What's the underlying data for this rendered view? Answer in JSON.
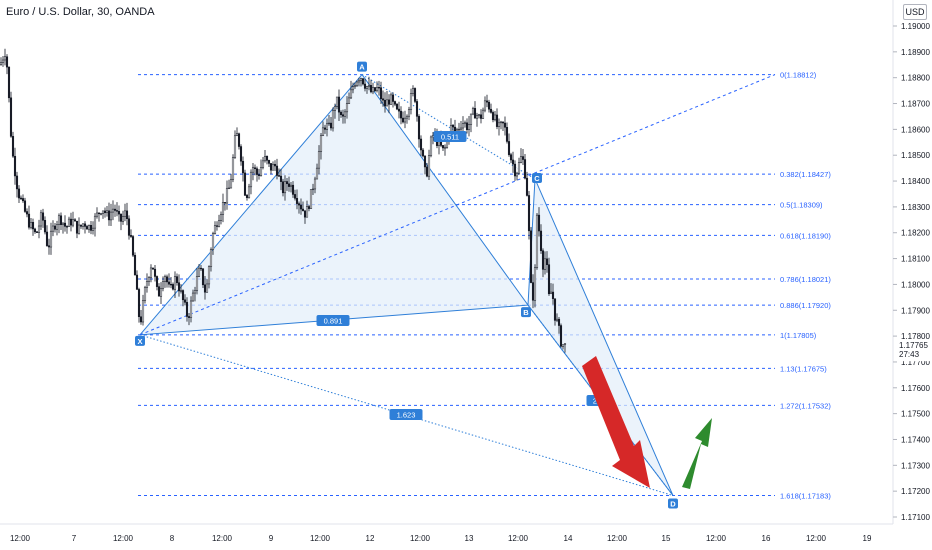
{
  "header": {
    "title": "Euro / U.S. Dollar, 30, OANDA",
    "currency": "USD"
  },
  "price_badge": {
    "price": "1.17765",
    "countdown": "27:43"
  },
  "chart_data": {
    "type": "candlestick",
    "title": "Euro / U.S. Dollar, 30, OANDA",
    "ylim": [
      1.1703,
      1.1922
    ],
    "y_ticks": [
      "1.19000",
      "1.18900",
      "1.18800",
      "1.18700",
      "1.18600",
      "1.18500",
      "1.18400",
      "1.18300",
      "1.18200",
      "1.18100",
      "1.18000",
      "1.17900",
      "1.17800",
      "1.17700",
      "1.17600",
      "1.17500",
      "1.17400",
      "1.17300",
      "1.17200",
      "1.17100"
    ],
    "x_ticks": [
      "12:00",
      "7",
      "12:00",
      "8",
      "12:00",
      "9",
      "12:00",
      "12",
      "12:00",
      "13",
      "12:00",
      "14",
      "12:00",
      "15",
      "12:00",
      "16",
      "12:00",
      "19"
    ],
    "price_path": [
      [
        0,
        1.1885
      ],
      [
        6,
        1.1891
      ],
      [
        12,
        1.1852
      ],
      [
        18,
        1.1836
      ],
      [
        24,
        1.1829
      ],
      [
        30,
        1.1823
      ],
      [
        36,
        1.1819
      ],
      [
        42,
        1.1827
      ],
      [
        48,
        1.1814
      ],
      [
        54,
        1.1823
      ],
      [
        60,
        1.1826
      ],
      [
        66,
        1.1822
      ],
      [
        72,
        1.1825
      ],
      [
        78,
        1.1821
      ],
      [
        84,
        1.1824
      ],
      [
        90,
        1.1822
      ],
      [
        96,
        1.1826
      ],
      [
        102,
        1.183
      ],
      [
        108,
        1.1826
      ],
      [
        114,
        1.183
      ],
      [
        120,
        1.1824
      ],
      [
        126,
        1.1828
      ],
      [
        132,
        1.1814
      ],
      [
        136,
        1.18
      ],
      [
        140,
        1.1784
      ],
      [
        146,
        1.18
      ],
      [
        152,
        1.1809
      ],
      [
        158,
        1.1795
      ],
      [
        164,
        1.1805
      ],
      [
        170,
        1.1797
      ],
      [
        176,
        1.1803
      ],
      [
        182,
        1.1795
      ],
      [
        188,
        1.1787
      ],
      [
        194,
        1.1798
      ],
      [
        200,
        1.1806
      ],
      [
        206,
        1.1796
      ],
      [
        212,
        1.1818
      ],
      [
        218,
        1.1826
      ],
      [
        224,
        1.1832
      ],
      [
        230,
        1.1838
      ],
      [
        236,
        1.1859
      ],
      [
        240,
        1.1853
      ],
      [
        246,
        1.1833
      ],
      [
        252,
        1.1846
      ],
      [
        258,
        1.1842
      ],
      [
        264,
        1.1849
      ],
      [
        270,
        1.1845
      ],
      [
        276,
        1.1846
      ],
      [
        282,
        1.1836
      ],
      [
        288,
        1.184
      ],
      [
        294,
        1.1836
      ],
      [
        300,
        1.1831
      ],
      [
        306,
        1.1827
      ],
      [
        312,
        1.1836
      ],
      [
        318,
        1.1849
      ],
      [
        324,
        1.1862
      ],
      [
        330,
        1.186
      ],
      [
        336,
        1.1872
      ],
      [
        342,
        1.1863
      ],
      [
        348,
        1.187
      ],
      [
        354,
        1.1878
      ],
      [
        360,
        1.1881
      ],
      [
        366,
        1.1877
      ],
      [
        372,
        1.1874
      ],
      [
        378,
        1.1876
      ],
      [
        384,
        1.1869
      ],
      [
        390,
        1.1872
      ],
      [
        396,
        1.1867
      ],
      [
        402,
        1.1864
      ],
      [
        408,
        1.1868
      ],
      [
        414,
        1.1876
      ],
      [
        420,
        1.1855
      ],
      [
        426,
        1.1841
      ],
      [
        432,
        1.1858
      ],
      [
        438,
        1.1855
      ],
      [
        444,
        1.1851
      ],
      [
        450,
        1.1861
      ],
      [
        456,
        1.1859
      ],
      [
        462,
        1.1863
      ],
      [
        468,
        1.1861
      ],
      [
        474,
        1.1867
      ],
      [
        480,
        1.1864
      ],
      [
        486,
        1.1871
      ],
      [
        492,
        1.1867
      ],
      [
        498,
        1.186
      ],
      [
        504,
        1.1862
      ],
      [
        510,
        1.185
      ],
      [
        516,
        1.1843
      ],
      [
        522,
        1.185
      ],
      [
        526,
        1.1841
      ],
      [
        528,
        1.183
      ],
      [
        531,
        1.1799
      ],
      [
        534,
        1.1794
      ],
      [
        537,
        1.1827
      ],
      [
        540,
        1.1818
      ],
      [
        543,
        1.1808
      ],
      [
        546,
        1.1811
      ],
      [
        549,
        1.1795
      ],
      [
        552,
        1.1798
      ],
      [
        555,
        1.1788
      ],
      [
        558,
        1.1784
      ],
      [
        561,
        1.1778
      ],
      [
        564,
        1.1776
      ],
      [
        566,
        1.17765
      ]
    ],
    "harmonic_pattern": {
      "points": [
        {
          "label": "X",
          "bar": 140,
          "price": 1.17805
        },
        {
          "label": "A",
          "bar": 362,
          "price": 1.18812
        },
        {
          "label": "B",
          "bar": 528,
          "price": 1.1792
        },
        {
          "label": "C",
          "bar": 535,
          "price": 1.18408
        },
        {
          "label": "D",
          "bar": 673,
          "price": 1.17183
        }
      ],
      "ratios": [
        {
          "label": "0.891",
          "near": "XB"
        },
        {
          "label": "1.623",
          "near": "XD"
        },
        {
          "label": "0.511",
          "near": "AC"
        },
        {
          "label": "2.0",
          "near": "BD"
        }
      ]
    },
    "fib_levels": [
      {
        "label": "0(1.18812)",
        "price": 1.18812
      },
      {
        "label": "0.382(1.18427)",
        "price": 1.18427
      },
      {
        "label": "0.5(1.18309)",
        "price": 1.18309
      },
      {
        "label": "0.618(1.18190)",
        "price": 1.1819
      },
      {
        "label": "0.786(1.18021)",
        "price": 1.18021
      },
      {
        "label": "0.886(1.17920)",
        "price": 1.1792
      },
      {
        "label": "1(1.17805)",
        "price": 1.17805
      },
      {
        "label": "1.13(1.17675)",
        "price": 1.17675
      },
      {
        "label": "1.272(1.17532)",
        "price": 1.17532
      },
      {
        "label": "1.618(1.17183)",
        "price": 1.17183
      }
    ],
    "arrows": [
      {
        "direction": "down",
        "color": "#d62828"
      },
      {
        "direction": "up",
        "color": "#2e8b2e"
      }
    ],
    "colors": {
      "candle": "#131722",
      "fib_line": "#2962ff",
      "pattern_fill": "#e3eefa",
      "pattern_line": "#2f7fd8",
      "label_bg": "#2f7fd8",
      "price_badge": "#131722"
    }
  }
}
